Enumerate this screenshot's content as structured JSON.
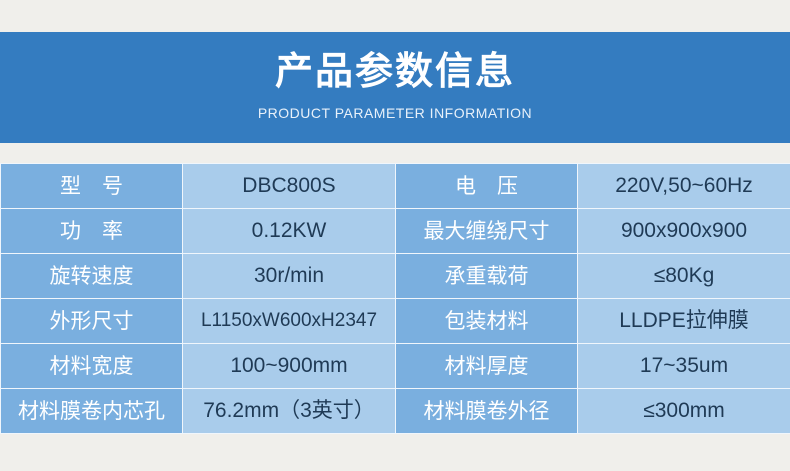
{
  "header": {
    "title": "产品参数信息",
    "subtitle": "PRODUCT PARAMETER INFORMATION"
  },
  "colors": {
    "banner": "#347cc0",
    "label_cell": "#7aafdf",
    "value_cell": "#a9cceb",
    "background": "#f0efeb"
  },
  "rows": [
    [
      {
        "label": "型　号",
        "value": "DBC800S"
      },
      {
        "label": "电　压",
        "value": "220V,50~60Hz"
      }
    ],
    [
      {
        "label": "功　率",
        "value": "0.12KW"
      },
      {
        "label": "最大缠绕尺寸",
        "value": "900x900x900"
      }
    ],
    [
      {
        "label": "旋转速度",
        "value": "30r/min"
      },
      {
        "label": "承重载荷",
        "value": "≤80Kg"
      }
    ],
    [
      {
        "label": "外形尺寸",
        "value": "L1150xW600xH2347"
      },
      {
        "label": "包装材料",
        "value": "LLDPE拉伸膜"
      }
    ],
    [
      {
        "label": "材料宽度",
        "value": "100~900mm"
      },
      {
        "label": "材料厚度",
        "value": "17~35um"
      }
    ],
    [
      {
        "label": "材料膜卷内芯孔",
        "value": "76.2mm（3英寸）"
      },
      {
        "label": "材料膜卷外径",
        "value": "≤300mm"
      }
    ]
  ]
}
